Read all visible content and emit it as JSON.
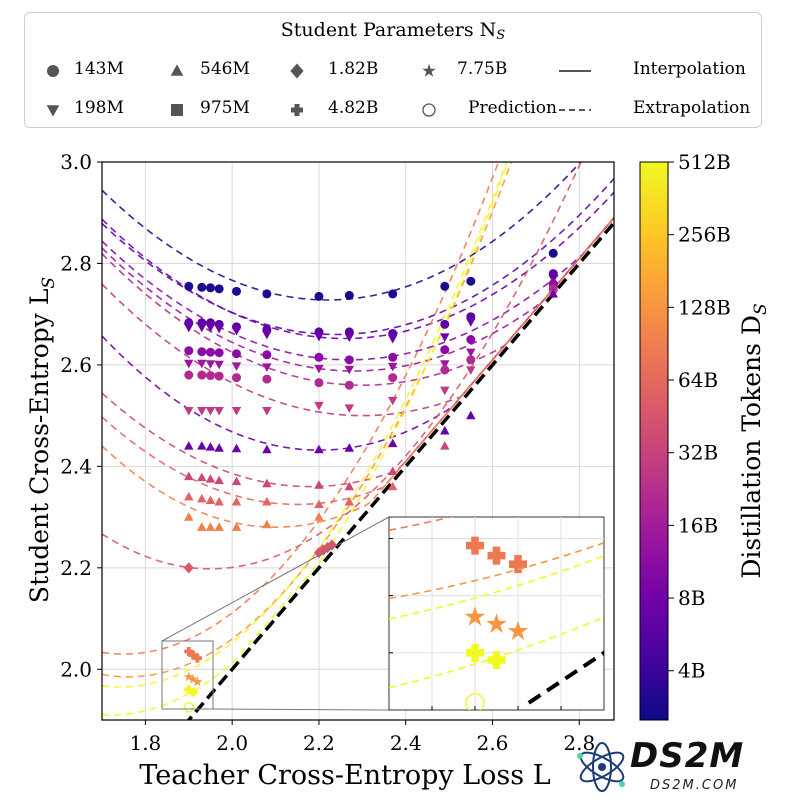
{
  "legend": {
    "title": "Student Parameters N",
    "title_sub": "S",
    "items": [
      {
        "label": "143M",
        "marker": "circle"
      },
      {
        "label": "546M",
        "marker": "triangle-up"
      },
      {
        "label": "1.82B",
        "marker": "diamond"
      },
      {
        "label": "7.75B",
        "marker": "star"
      },
      {
        "label": "Interpolation",
        "marker": "solid-line"
      },
      {
        "label": "198M",
        "marker": "triangle-down"
      },
      {
        "label": "975M",
        "marker": "square"
      },
      {
        "label": "4.82B",
        "marker": "plus"
      },
      {
        "label": "Prediction",
        "marker": "open-circle"
      },
      {
        "label": "Extrapolation",
        "marker": "dashed-line"
      }
    ]
  },
  "chart_data": {
    "type": "scatter",
    "xlabel": "Teacher Cross-Entropy Loss L",
    "ylabel": "Student Cross-Entropy L",
    "ylabel_sub": "S",
    "xlim": [
      1.7,
      2.88
    ],
    "ylim": [
      1.9,
      3.0
    ],
    "xticks": [
      "1.8",
      "2.0",
      "2.2",
      "2.4",
      "2.6",
      "2.8"
    ],
    "yticks": [
      "2.0",
      "2.2",
      "2.4",
      "2.6",
      "2.8",
      "3.0"
    ],
    "grid": true,
    "colorbar": {
      "label": "Distillation Tokens D",
      "label_sub": "S",
      "scale": "log",
      "ticks": [
        "4B",
        "8B",
        "16B",
        "32B",
        "64B",
        "128B",
        "256B",
        "512B"
      ],
      "colors": [
        "#0d0887",
        "#46039f",
        "#7201a8",
        "#9c179e",
        "#bd3786",
        "#d8576b",
        "#ed7953",
        "#fb9f3a",
        "#fdca26",
        "#f0f921"
      ]
    },
    "identity_line": {
      "style": "dashed",
      "color": "#000000"
    },
    "series": [
      {
        "marker": "circle",
        "color": "#1d0b8e",
        "x": [
          1.9,
          1.93,
          1.95,
          1.97,
          2.01,
          2.08,
          2.2,
          2.27,
          2.37,
          2.49,
          2.55,
          2.74
        ],
        "y": [
          2.755,
          2.753,
          2.752,
          2.75,
          2.745,
          2.74,
          2.735,
          2.737,
          2.74,
          2.755,
          2.765,
          2.82
        ],
        "curve": {
          "a": 0.8,
          "x0": 2.22,
          "c": 2.728
        }
      },
      {
        "marker": "circle",
        "color": "#5c01a6",
        "x": [
          1.9,
          1.93,
          1.95,
          1.97,
          2.01,
          2.08,
          2.2,
          2.27,
          2.37,
          2.49,
          2.55,
          2.74
        ],
        "y": [
          2.683,
          2.683,
          2.683,
          2.68,
          2.675,
          2.67,
          2.665,
          2.665,
          2.662,
          2.68,
          2.695,
          2.78
        ],
        "curve": {
          "a": 0.75,
          "x0": 2.24,
          "c": 2.66
        }
      },
      {
        "marker": "triangle-down",
        "color": "#6a00a8",
        "x": [
          1.9,
          1.93,
          1.95,
          1.97,
          2.01,
          2.08,
          2.2,
          2.27,
          2.37,
          2.49,
          2.55,
          2.74
        ],
        "y": [
          2.674,
          2.674,
          2.674,
          2.672,
          2.668,
          2.66,
          2.656,
          2.655,
          2.652,
          2.655,
          2.685,
          2.77
        ],
        "curve": {
          "a": 0.75,
          "x0": 2.26,
          "c": 2.652
        }
      },
      {
        "marker": "circle",
        "color": "#8b0aa5",
        "x": [
          1.9,
          1.93,
          1.95,
          1.97,
          2.01,
          2.08,
          2.2,
          2.27,
          2.37,
          2.49,
          2.55,
          2.74
        ],
        "y": [
          2.628,
          2.626,
          2.625,
          2.624,
          2.622,
          2.62,
          2.615,
          2.61,
          2.615,
          2.63,
          2.65,
          2.76
        ],
        "curve": {
          "a": 0.72,
          "x0": 2.27,
          "c": 2.61
        }
      },
      {
        "marker": "triangle-down",
        "color": "#9c179e",
        "x": [
          1.9,
          1.93,
          1.95,
          1.97,
          2.01,
          2.08,
          2.2,
          2.27,
          2.37,
          2.49,
          2.55,
          2.74
        ],
        "y": [
          2.603,
          2.603,
          2.602,
          2.601,
          2.598,
          2.596,
          2.593,
          2.591,
          2.597,
          2.602,
          2.625,
          2.75
        ],
        "curve": {
          "a": 0.72,
          "x0": 2.28,
          "c": 2.588
        }
      },
      {
        "marker": "circle",
        "color": "#b12a90",
        "x": [
          1.9,
          1.93,
          1.95,
          1.97,
          2.01,
          2.08,
          2.2,
          2.27,
          2.37,
          2.49,
          2.55,
          2.74
        ],
        "y": [
          2.58,
          2.58,
          2.579,
          2.578,
          2.575,
          2.572,
          2.565,
          2.56,
          2.575,
          2.59,
          2.61,
          2.75
        ],
        "curve": {
          "a": 0.72,
          "x0": 2.3,
          "c": 2.56
        }
      },
      {
        "marker": "triangle-down",
        "color": "#c03a83",
        "x": [
          1.9,
          1.93,
          1.95,
          1.97,
          2.01,
          2.08,
          2.2,
          2.27,
          2.37,
          2.49,
          2.55,
          2.74
        ],
        "y": [
          2.51,
          2.51,
          2.51,
          2.51,
          2.51,
          2.51,
          2.52,
          2.515,
          2.53,
          2.55,
          2.59,
          2.74
        ],
        "curve": {
          "a": 0.72,
          "x0": 2.3,
          "c": 2.5
        }
      },
      {
        "marker": "triangle-up",
        "color": "#6a00a8",
        "x": [
          1.9,
          1.93,
          1.95,
          1.97,
          2.01,
          2.08,
          2.2,
          2.27,
          2.37,
          2.49,
          2.55,
          2.74
        ],
        "y": [
          2.44,
          2.44,
          2.438,
          2.436,
          2.435,
          2.433,
          2.433,
          2.436,
          2.445,
          2.47,
          2.5,
          2.74
        ],
        "curve": {
          "a": 0.9,
          "x0": 2.2,
          "c": 2.432
        }
      },
      {
        "marker": "triangle-up",
        "color": "#cc4778",
        "x": [
          1.9,
          1.93,
          1.95,
          1.97,
          2.01,
          2.08,
          2.2,
          2.27,
          2.37,
          2.49
        ],
        "y": [
          2.38,
          2.378,
          2.375,
          2.372,
          2.37,
          2.366,
          2.363,
          2.36,
          2.39,
          2.44
        ],
        "curve": {
          "a": 0.8,
          "x0": 2.18,
          "c": 2.36
        }
      },
      {
        "marker": "triangle-up",
        "color": "#e16462",
        "x": [
          1.9,
          1.93,
          1.95,
          1.97,
          2.01,
          2.08,
          2.2,
          2.27,
          2.37
        ],
        "y": [
          2.34,
          2.336,
          2.333,
          2.33,
          2.33,
          2.33,
          2.325,
          2.33,
          2.36
        ],
        "curve": {
          "a": 0.85,
          "x0": 2.15,
          "c": 2.325
        }
      },
      {
        "marker": "triangle-up",
        "color": "#f0804a",
        "x": [
          1.9,
          1.93,
          1.95,
          1.97,
          2.01,
          2.08,
          2.2
        ],
        "y": [
          2.3,
          2.28,
          2.28,
          2.28,
          2.28,
          2.285,
          2.3
        ],
        "curve": {
          "a": 1.0,
          "x0": 2.1,
          "c": 2.28
        }
      },
      {
        "marker": "diamond",
        "color": "#d8576b",
        "x": [
          1.9,
          2.2,
          2.21,
          2.22,
          2.23
        ],
        "y": [
          2.2,
          2.23,
          2.235,
          2.24,
          2.245
        ],
        "curve": {
          "a": 1.1,
          "x0": 1.95,
          "c": 2.198
        }
      },
      {
        "marker": "plus",
        "color": "#ed7953",
        "x": [
          1.9,
          1.91,
          1.92
        ],
        "y": [
          2.035,
          2.028,
          2.022
        ],
        "curve": {
          "a": 1.3,
          "x0": 1.75,
          "c": 2.03
        }
      },
      {
        "marker": "star",
        "color": "#f89540",
        "x": [
          1.9,
          1.91,
          1.92
        ],
        "y": [
          1.985,
          1.98,
          1.975
        ],
        "curve": {
          "a": 1.3,
          "x0": 1.76,
          "c": 1.985
        }
      },
      {
        "marker": "plus",
        "color": "#f0f921",
        "x": [
          1.9,
          1.91
        ],
        "y": [
          1.96,
          1.955
        ],
        "curve": {
          "a": 1.3,
          "x0": 1.74,
          "c": 1.965
        }
      },
      {
        "marker": "open-circle",
        "color": "#f0f921",
        "x": [
          1.9
        ],
        "y": [
          1.925
        ],
        "curve": {
          "a": 1.3,
          "x0": 1.72,
          "c": 1.91
        }
      }
    ]
  },
  "logo": {
    "text": "DS2M",
    "sub": "DS2M.COM"
  }
}
